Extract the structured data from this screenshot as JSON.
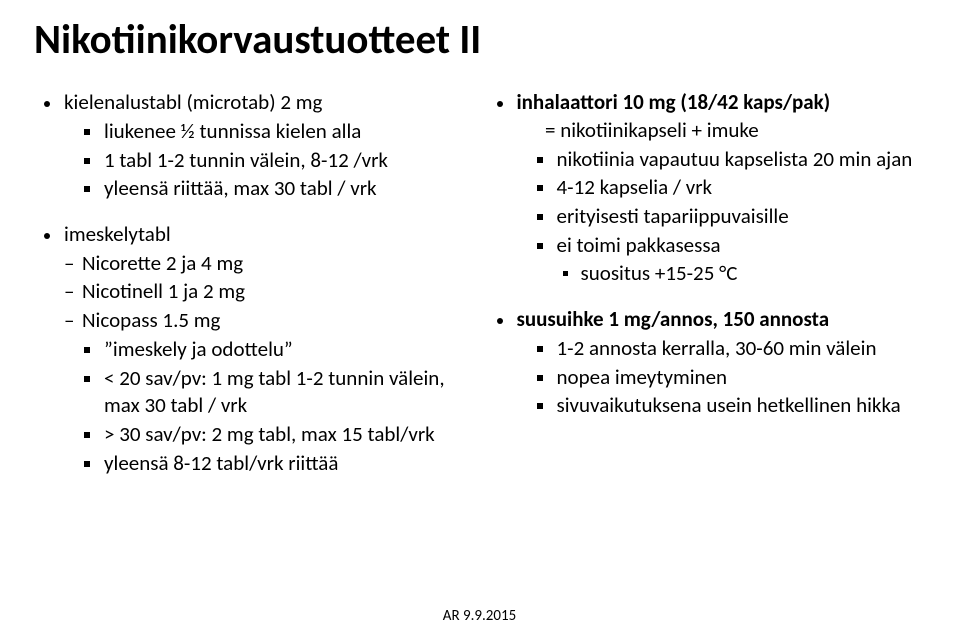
{
  "title": "Nikotiinikorvaustuotteet II",
  "left": {
    "i1": "kielenalustabl (microtab) 2 mg",
    "i1a": "liukenee ½ tunnissa kielen alla",
    "i1b": "1 tabl 1-2 tunnin välein,  8-12 /vrk",
    "i1c": "yleensä riittää,  max 30 tabl / vrk",
    "i2": "imeskelytabl",
    "i2a": "Nicorette 2 ja 4 mg",
    "i2b": "Nicotinell 1 ja 2 mg",
    "i2c": "Nicopass 1.5 mg",
    "i2c1": "”imeskely ja odottelu”",
    "i2c2": "< 20 sav/pv: 1 mg tabl 1-2 tunnin välein,  max 30 tabl / vrk",
    "i2c3": "> 30 sav/pv: 2 mg tabl, max 15 tabl/vrk",
    "i2c4": "yleensä 8-12 tabl/vrk riittää"
  },
  "right": {
    "r1": "inhalaattori 10 mg (18/42 kaps/pak)",
    "r1sub": "      = nikotiinikapseli + imuke",
    "r1a": "nikotiinia vapautuu kapselista 20 min ajan",
    "r1b": "4-12 kapselia / vrk",
    "r1c": "erityisesti tapariippuvaisille",
    "r1d": "ei toimi pakkasessa",
    "r1d1": "suositus +15-25 °C",
    "r2": "suusuihke 1 mg/annos, 150 annosta",
    "r2a": "1-2 annosta kerralla, 30-60 min välein",
    "r2b": "nopea imeytyminen",
    "r2c": "sivuvaikutuksena usein hetkellinen hikka"
  },
  "footer": "AR 9.9.2015",
  "colors": {
    "text": "#000000",
    "background": "#ffffff"
  }
}
